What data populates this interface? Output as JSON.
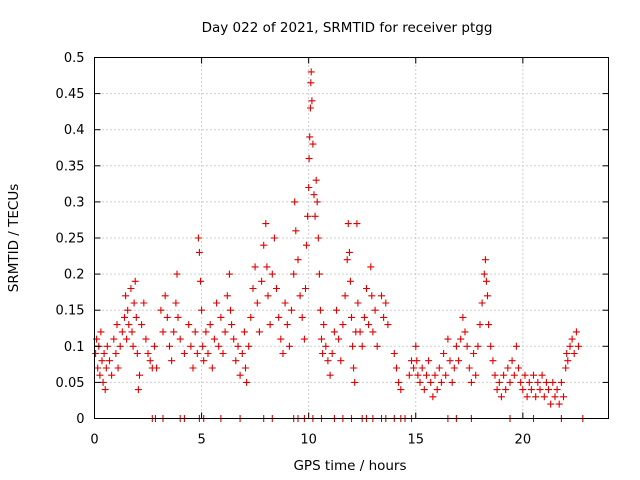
{
  "chart_data": {
    "type": "scatter",
    "title": "Day 022 of 2021, SRMTID for receiver ptgg",
    "xlabel": "GPS time / hours",
    "ylabel": "SRMTID / TECUs",
    "xlim": [
      0,
      24
    ],
    "ylim": [
      0,
      0.5
    ],
    "xticks": [
      0,
      5,
      10,
      15,
      20
    ],
    "xtick_labels": [
      "0",
      "5",
      "10",
      "15",
      "20"
    ],
    "yticks": [
      0,
      0.05,
      0.1,
      0.15,
      0.2,
      0.25,
      0.3,
      0.35,
      0.4,
      0.45,
      0.5
    ],
    "ytick_labels": [
      "0",
      "0.05",
      "0.1",
      "0.15",
      "0.2",
      "0.25",
      "0.3",
      "0.35",
      "0.4",
      "0.45",
      "0.5"
    ],
    "grid": true,
    "marker": "+",
    "color": "#e00000",
    "series": [
      {
        "name": "SRMTID",
        "points": [
          [
            0.05,
            0.09
          ],
          [
            0.1,
            0.11
          ],
          [
            0.15,
            0.07
          ],
          [
            0.2,
            0.1
          ],
          [
            0.25,
            0.06
          ],
          [
            0.3,
            0.12
          ],
          [
            0.35,
            0.08
          ],
          [
            0.4,
            0.05
          ],
          [
            0.45,
            0.09
          ],
          [
            0.5,
            0.04
          ],
          [
            0.55,
            0.07
          ],
          [
            0.6,
            0.1
          ],
          [
            0.7,
            0.08
          ],
          [
            0.8,
            0.06
          ],
          [
            0.9,
            0.11
          ],
          [
            1.0,
            0.09
          ],
          [
            1.05,
            0.13
          ],
          [
            1.1,
            0.07
          ],
          [
            1.2,
            0.1
          ],
          [
            1.3,
            0.12
          ],
          [
            1.4,
            0.14
          ],
          [
            1.45,
            0.17
          ],
          [
            1.5,
            0.11
          ],
          [
            1.55,
            0.15
          ],
          [
            1.6,
            0.13
          ],
          [
            1.7,
            0.18
          ],
          [
            1.75,
            0.12
          ],
          [
            1.8,
            0.1
          ],
          [
            1.85,
            0.16
          ],
          [
            1.9,
            0.19
          ],
          [
            1.95,
            0.14
          ],
          [
            2.0,
            0.09
          ],
          [
            2.05,
            0.04
          ],
          [
            2.1,
            0.06
          ],
          [
            2.2,
            0.13
          ],
          [
            2.3,
            0.16
          ],
          [
            2.4,
            0.11
          ],
          [
            2.5,
            0.09
          ],
          [
            2.6,
            0.08
          ],
          [
            2.7,
            0.07
          ],
          [
            2.8,
            0.1
          ],
          [
            2.9,
            0.07
          ],
          [
            3.1,
            0.15
          ],
          [
            3.2,
            0.12
          ],
          [
            3.3,
            0.17
          ],
          [
            3.4,
            0.14
          ],
          [
            3.5,
            0.1
          ],
          [
            3.6,
            0.08
          ],
          [
            3.7,
            0.12
          ],
          [
            3.8,
            0.16
          ],
          [
            3.85,
            0.2
          ],
          [
            3.9,
            0.14
          ],
          [
            4.0,
            0.11
          ],
          [
            4.2,
            0.09
          ],
          [
            4.4,
            0.13
          ],
          [
            4.5,
            0.1
          ],
          [
            4.6,
            0.07
          ],
          [
            4.7,
            0.12
          ],
          [
            4.8,
            0.09
          ],
          [
            4.85,
            0.25
          ],
          [
            4.9,
            0.23
          ],
          [
            4.95,
            0.19
          ],
          [
            5.0,
            0.15
          ],
          [
            5.05,
            0.1
          ],
          [
            5.1,
            0.08
          ],
          [
            5.2,
            0.12
          ],
          [
            5.3,
            0.09
          ],
          [
            5.4,
            0.13
          ],
          [
            5.5,
            0.07
          ],
          [
            5.6,
            0.11
          ],
          [
            5.7,
            0.16
          ],
          [
            5.8,
            0.1
          ],
          [
            5.9,
            0.14
          ],
          [
            6.0,
            0.09
          ],
          [
            6.1,
            0.12
          ],
          [
            6.2,
            0.17
          ],
          [
            6.3,
            0.2
          ],
          [
            6.35,
            0.15
          ],
          [
            6.4,
            0.13
          ],
          [
            6.5,
            0.11
          ],
          [
            6.6,
            0.08
          ],
          [
            6.7,
            0.1
          ],
          [
            6.8,
            0.06
          ],
          [
            6.9,
            0.09
          ],
          [
            7.0,
            0.12
          ],
          [
            7.05,
            0.07
          ],
          [
            7.1,
            0.05
          ],
          [
            7.2,
            0.1
          ],
          [
            7.3,
            0.14
          ],
          [
            7.4,
            0.18
          ],
          [
            7.5,
            0.21
          ],
          [
            7.6,
            0.16
          ],
          [
            7.7,
            0.12
          ],
          [
            7.8,
            0.19
          ],
          [
            7.9,
            0.24
          ],
          [
            8.0,
            0.27
          ],
          [
            8.05,
            0.21
          ],
          [
            8.1,
            0.17
          ],
          [
            8.2,
            0.13
          ],
          [
            8.3,
            0.2
          ],
          [
            8.4,
            0.25
          ],
          [
            8.5,
            0.18
          ],
          [
            8.6,
            0.14
          ],
          [
            8.7,
            0.11
          ],
          [
            8.8,
            0.09
          ],
          [
            8.9,
            0.16
          ],
          [
            9.0,
            0.13
          ],
          [
            9.1,
            0.1
          ],
          [
            9.2,
            0.15
          ],
          [
            9.3,
            0.2
          ],
          [
            9.35,
            0.3
          ],
          [
            9.4,
            0.26
          ],
          [
            9.5,
            0.22
          ],
          [
            9.6,
            0.17
          ],
          [
            9.7,
            0.14
          ],
          [
            9.8,
            0.11
          ],
          [
            9.85,
            0.18
          ],
          [
            9.9,
            0.24
          ],
          [
            9.95,
            0.28
          ],
          [
            10.0,
            0.32
          ],
          [
            10.02,
            0.36
          ],
          [
            10.05,
            0.39
          ],
          [
            10.08,
            0.43
          ],
          [
            10.1,
            0.465
          ],
          [
            10.12,
            0.48
          ],
          [
            10.15,
            0.44
          ],
          [
            10.2,
            0.38
          ],
          [
            10.25,
            0.31
          ],
          [
            10.3,
            0.28
          ],
          [
            10.35,
            0.33
          ],
          [
            10.4,
            0.3
          ],
          [
            10.45,
            0.25
          ],
          [
            10.5,
            0.2
          ],
          [
            10.55,
            0.15
          ],
          [
            10.6,
            0.11
          ],
          [
            10.65,
            0.09
          ],
          [
            10.7,
            0.13
          ],
          [
            10.8,
            0.1
          ],
          [
            10.9,
            0.08
          ],
          [
            11.0,
            0.06
          ],
          [
            11.1,
            0.09
          ],
          [
            11.2,
            0.12
          ],
          [
            11.3,
            0.15
          ],
          [
            11.4,
            0.11
          ],
          [
            11.5,
            0.08
          ],
          [
            11.6,
            0.13
          ],
          [
            11.7,
            0.17
          ],
          [
            11.8,
            0.22
          ],
          [
            11.85,
            0.27
          ],
          [
            11.9,
            0.23
          ],
          [
            11.95,
            0.19
          ],
          [
            12.0,
            0.14
          ],
          [
            12.05,
            0.1
          ],
          [
            12.1,
            0.07
          ],
          [
            12.15,
            0.05
          ],
          [
            12.2,
            0.12
          ],
          [
            12.25,
            0.27
          ],
          [
            12.3,
            0.16
          ],
          [
            12.4,
            0.12
          ],
          [
            12.5,
            0.1
          ],
          [
            12.6,
            0.14
          ],
          [
            12.7,
            0.18
          ],
          [
            12.8,
            0.13
          ],
          [
            12.9,
            0.21
          ],
          [
            12.95,
            0.17
          ],
          [
            13.0,
            0.12
          ],
          [
            13.1,
            0.15
          ],
          [
            13.2,
            0.1
          ],
          [
            13.4,
            0.17
          ],
          [
            13.5,
            0.14
          ],
          [
            13.6,
            0.16
          ],
          [
            13.7,
            0.13
          ],
          [
            14.0,
            0.09
          ],
          [
            14.1,
            0.07
          ],
          [
            14.2,
            0.05
          ],
          [
            14.3,
            0.04
          ],
          [
            14.7,
            0.06
          ],
          [
            14.8,
            0.08
          ],
          [
            14.9,
            0.07
          ],
          [
            15.0,
            0.1
          ],
          [
            15.05,
            0.08
          ],
          [
            15.1,
            0.06
          ],
          [
            15.2,
            0.05
          ],
          [
            15.3,
            0.07
          ],
          [
            15.4,
            0.04
          ],
          [
            15.5,
            0.06
          ],
          [
            15.6,
            0.08
          ],
          [
            15.7,
            0.05
          ],
          [
            15.8,
            0.03
          ],
          [
            15.9,
            0.06
          ],
          [
            16.0,
            0.04
          ],
          [
            16.1,
            0.07
          ],
          [
            16.2,
            0.05
          ],
          [
            16.3,
            0.09
          ],
          [
            16.4,
            0.06
          ],
          [
            16.5,
            0.11
          ],
          [
            16.6,
            0.08
          ],
          [
            16.7,
            0.05
          ],
          [
            16.8,
            0.07
          ],
          [
            16.9,
            0.1
          ],
          [
            17.0,
            0.08
          ],
          [
            17.1,
            0.11
          ],
          [
            17.2,
            0.14
          ],
          [
            17.3,
            0.12
          ],
          [
            17.4,
            0.1
          ],
          [
            17.5,
            0.07
          ],
          [
            17.6,
            0.05
          ],
          [
            17.7,
            0.09
          ],
          [
            17.8,
            0.06
          ],
          [
            17.9,
            0.1
          ],
          [
            18.0,
            0.13
          ],
          [
            18.1,
            0.16
          ],
          [
            18.2,
            0.2
          ],
          [
            18.25,
            0.22
          ],
          [
            18.3,
            0.19
          ],
          [
            18.35,
            0.17
          ],
          [
            18.4,
            0.13
          ],
          [
            18.5,
            0.1
          ],
          [
            18.6,
            0.08
          ],
          [
            18.7,
            0.06
          ],
          [
            18.8,
            0.04
          ],
          [
            18.9,
            0.05
          ],
          [
            19.0,
            0.03
          ],
          [
            19.1,
            0.06
          ],
          [
            19.2,
            0.04
          ],
          [
            19.3,
            0.07
          ],
          [
            19.4,
            0.05
          ],
          [
            19.5,
            0.08
          ],
          [
            19.6,
            0.06
          ],
          [
            19.7,
            0.1
          ],
          [
            19.8,
            0.07
          ],
          [
            19.9,
            0.05
          ],
          [
            20.0,
            0.04
          ],
          [
            20.1,
            0.06
          ],
          [
            20.2,
            0.03
          ],
          [
            20.3,
            0.05
          ],
          [
            20.4,
            0.04
          ],
          [
            20.5,
            0.06
          ],
          [
            20.6,
            0.03
          ],
          [
            20.7,
            0.05
          ],
          [
            20.8,
            0.04
          ],
          [
            20.9,
            0.06
          ],
          [
            21.0,
            0.03
          ],
          [
            21.1,
            0.05
          ],
          [
            21.2,
            0.04
          ],
          [
            21.3,
            0.02
          ],
          [
            21.4,
            0.05
          ],
          [
            21.5,
            0.03
          ],
          [
            21.6,
            0.04
          ],
          [
            21.7,
            0.02
          ],
          [
            21.8,
            0.05
          ],
          [
            21.9,
            0.03
          ],
          [
            22.0,
            0.07
          ],
          [
            22.05,
            0.09
          ],
          [
            22.1,
            0.08
          ],
          [
            22.2,
            0.1
          ],
          [
            22.3,
            0.11
          ],
          [
            22.4,
            0.09
          ],
          [
            22.5,
            0.12
          ],
          [
            22.6,
            0.1
          ],
          [
            2.7,
            0.0
          ],
          [
            2.85,
            0.0
          ],
          [
            3.2,
            0.0
          ],
          [
            4.0,
            0.0
          ],
          [
            4.2,
            0.0
          ],
          [
            4.9,
            0.0
          ],
          [
            5.1,
            0.0
          ],
          [
            5.9,
            0.0
          ],
          [
            6.8,
            0.0
          ],
          [
            7.9,
            0.0
          ],
          [
            8.3,
            0.0
          ],
          [
            9.3,
            0.0
          ],
          [
            9.5,
            0.0
          ],
          [
            9.8,
            0.0
          ],
          [
            10.2,
            0.0
          ],
          [
            10.6,
            0.0
          ],
          [
            11.2,
            0.0
          ],
          [
            11.6,
            0.0
          ],
          [
            12.0,
            0.0
          ],
          [
            12.5,
            0.0
          ],
          [
            12.7,
            0.0
          ],
          [
            13.0,
            0.0
          ],
          [
            13.4,
            0.0
          ],
          [
            13.6,
            0.0
          ],
          [
            14.0,
            0.0
          ],
          [
            14.3,
            0.0
          ],
          [
            14.5,
            0.0
          ],
          [
            14.8,
            0.0
          ],
          [
            16.5,
            0.0
          ],
          [
            16.9,
            0.0
          ],
          [
            17.6,
            0.0
          ],
          [
            19.4,
            0.0
          ],
          [
            20.5,
            0.0
          ],
          [
            21.8,
            0.0
          ],
          [
            22.8,
            0.0
          ]
        ]
      }
    ]
  }
}
